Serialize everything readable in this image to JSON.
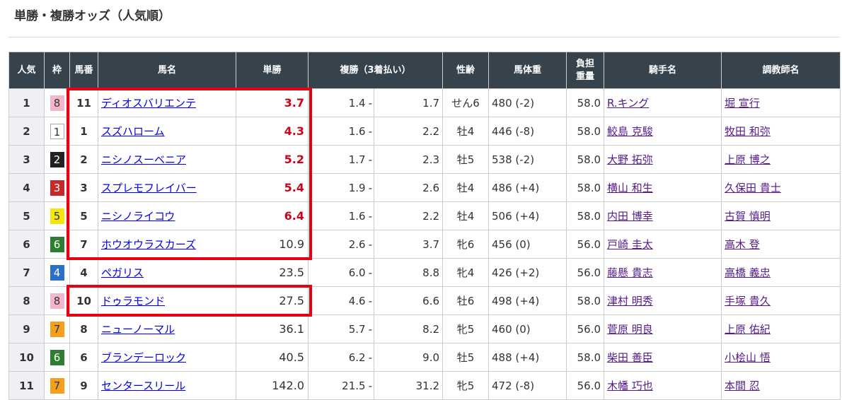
{
  "title": "単勝・複勝オッズ（人気順）",
  "headers": {
    "pop": "人気",
    "waku": "枠",
    "num": "馬番",
    "name": "馬名",
    "win": "単勝",
    "place": "複勝（3着払い）",
    "sexage": "性齢",
    "weight": "馬体重",
    "load1": "負担",
    "load2": "重量",
    "jockey": "騎手名",
    "trainer": "調教師名"
  },
  "waku_colors": {
    "1": "#ffffff",
    "2": "#222222",
    "3": "#c62927",
    "4": "#2a6fc9",
    "5": "#f5e50a",
    "6": "#2e7d32",
    "7": "#f6a01a",
    "8": "#f4b6cc"
  },
  "highlight_color": "#e60012",
  "rows": [
    {
      "pop": "1",
      "waku": "8",
      "num": "11",
      "name": "ディオスバリエンテ",
      "win": "3.7",
      "pmin": "1.4",
      "pmax": "1.7",
      "sexage": "せん6",
      "weight": "480 (-2)",
      "load": "58.0",
      "jockey": "R.キング",
      "trainer": "堀 宣行"
    },
    {
      "pop": "2",
      "waku": "1",
      "num": "1",
      "name": "スズハローム",
      "win": "4.3",
      "pmin": "1.6",
      "pmax": "2.2",
      "sexage": "牡4",
      "weight": "446 (-8)",
      "load": "58.0",
      "jockey": "鮫島 克駿",
      "trainer": "牧田 和弥"
    },
    {
      "pop": "3",
      "waku": "2",
      "num": "2",
      "name": "ニシノスーベニア",
      "win": "5.2",
      "pmin": "1.7",
      "pmax": "2.3",
      "sexage": "牡5",
      "weight": "538 (-2)",
      "load": "58.0",
      "jockey": "大野 拓弥",
      "trainer": "上原 博之"
    },
    {
      "pop": "4",
      "waku": "3",
      "num": "3",
      "name": "スプレモフレイバー",
      "win": "5.4",
      "pmin": "1.9",
      "pmax": "2.6",
      "sexage": "牡4",
      "weight": "486 (+4)",
      "load": "58.0",
      "jockey": "横山 和生",
      "trainer": "久保田 貴士"
    },
    {
      "pop": "5",
      "waku": "5",
      "num": "5",
      "name": "ニシノライコウ",
      "win": "6.4",
      "pmin": "1.6",
      "pmax": "2.2",
      "sexage": "牡4",
      "weight": "506 (+4)",
      "load": "58.0",
      "jockey": "内田 博幸",
      "trainer": "古賀 慎明"
    },
    {
      "pop": "6",
      "waku": "6",
      "num": "7",
      "name": "ホウオウラスカーズ",
      "win": "10.9",
      "pmin": "2.6",
      "pmax": "3.7",
      "sexage": "牝6",
      "weight": "456 (0)",
      "load": "56.0",
      "jockey": "戸崎 圭太",
      "trainer": "高木 登"
    },
    {
      "pop": "7",
      "waku": "4",
      "num": "4",
      "name": "ペガリス",
      "win": "23.5",
      "pmin": "6.0",
      "pmax": "8.8",
      "sexage": "牝4",
      "weight": "426 (+2)",
      "load": "56.0",
      "jockey": "藤懸 貴志",
      "trainer": "高橋 義忠"
    },
    {
      "pop": "8",
      "waku": "8",
      "num": "10",
      "name": "ドゥラモンド",
      "win": "27.5",
      "pmin": "4.6",
      "pmax": "6.6",
      "sexage": "牡6",
      "weight": "498 (+4)",
      "load": "58.0",
      "jockey": "津村 明秀",
      "trainer": "手塚 貴久"
    },
    {
      "pop": "9",
      "waku": "7",
      "num": "8",
      "name": "ニューノーマル",
      "win": "36.1",
      "pmin": "5.7",
      "pmax": "8.2",
      "sexage": "牝5",
      "weight": "460 (0)",
      "load": "56.0",
      "jockey": "菅原 明良",
      "trainer": "上原 佑紀"
    },
    {
      "pop": "10",
      "waku": "6",
      "num": "6",
      "name": "ブランデーロック",
      "win": "40.5",
      "pmin": "6.2",
      "pmax": "9.0",
      "sexage": "牡5",
      "weight": "488 (+4)",
      "load": "58.0",
      "jockey": "柴田 善臣",
      "trainer": "小桧山 悟"
    },
    {
      "pop": "11",
      "waku": "7",
      "num": "9",
      "name": "センタースリール",
      "win": "142.0",
      "pmin": "21.5",
      "pmax": "31.2",
      "sexage": "牝5",
      "weight": "472 (-8)",
      "load": "56.0",
      "jockey": "木幡 巧也",
      "trainer": "本間 忍"
    }
  ]
}
